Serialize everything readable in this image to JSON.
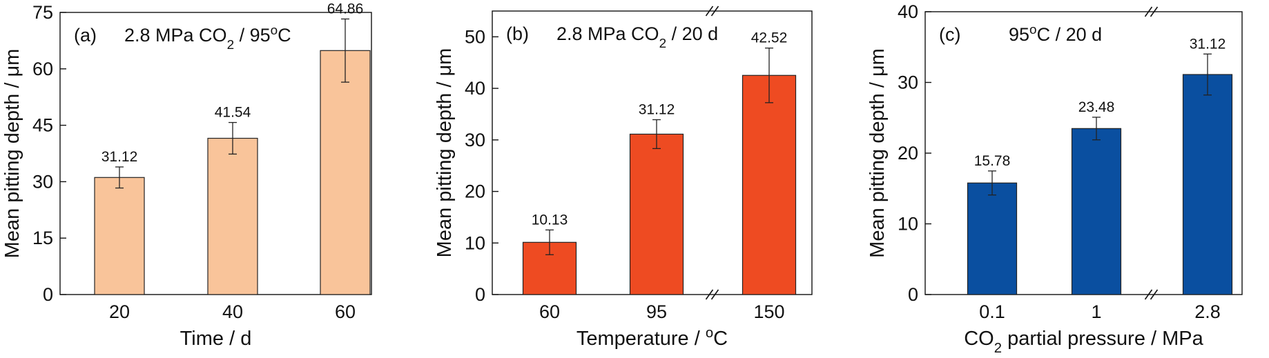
{
  "chart_data": [
    {
      "type": "bar",
      "panel_label": "(a)",
      "title": {
        "pre": "2.8 MPa CO",
        "sub": "2",
        "mid": " / 95",
        "sup": "o",
        "post": "C"
      },
      "xlabel": {
        "pre": "Time / d"
      },
      "ylabel": "Mean pitting depth / μm",
      "categories": [
        "20",
        "40",
        "60"
      ],
      "values": [
        31.12,
        41.54,
        64.86
      ],
      "value_labels": [
        "31.12",
        "41.54",
        "64.86"
      ],
      "errors": [
        2.8,
        4.2,
        8.4
      ],
      "ylim": [
        0,
        75
      ],
      "yticks": [
        0,
        15,
        30,
        45,
        60,
        75
      ],
      "bar_color": "#F9C49A",
      "axis_break": false,
      "legend": "none"
    },
    {
      "type": "bar",
      "panel_label": "(b)",
      "title": {
        "pre": "2.8 MPa CO",
        "sub": "2",
        "post": " / 20 d"
      },
      "xlabel": {
        "pre": "Temperature / ",
        "sup": "o",
        "post": "C"
      },
      "ylabel": "Mean pitting depth / μm",
      "categories": [
        "60",
        "95",
        "150"
      ],
      "values": [
        10.13,
        31.12,
        42.52
      ],
      "value_labels": [
        "10.13",
        "31.12",
        "42.52"
      ],
      "errors": [
        2.4,
        2.8,
        5.3
      ],
      "ylim": [
        0,
        55
      ],
      "yticks": [
        0,
        10,
        20,
        30,
        40,
        50
      ],
      "bar_color": "#EE4B22",
      "axis_break": true,
      "legend": "none"
    },
    {
      "type": "bar",
      "panel_label": "(c)",
      "title": {
        "pre": "95",
        "sup": "o",
        "post": "C / 20 d"
      },
      "xlabel": {
        "pre": "CO",
        "sub": "2",
        "post": " partial pressure  / MPa"
      },
      "ylabel": "Mean pitting depth / μm",
      "categories": [
        "0.1",
        "1",
        "2.8"
      ],
      "values": [
        15.78,
        23.48,
        31.12
      ],
      "value_labels": [
        "15.78",
        "23.48",
        "31.12"
      ],
      "errors": [
        1.7,
        1.6,
        2.9
      ],
      "ylim": [
        0,
        40
      ],
      "yticks": [
        0,
        10,
        20,
        30,
        40
      ],
      "bar_color": "#0A4FA0",
      "axis_break": true,
      "legend": "none"
    }
  ]
}
